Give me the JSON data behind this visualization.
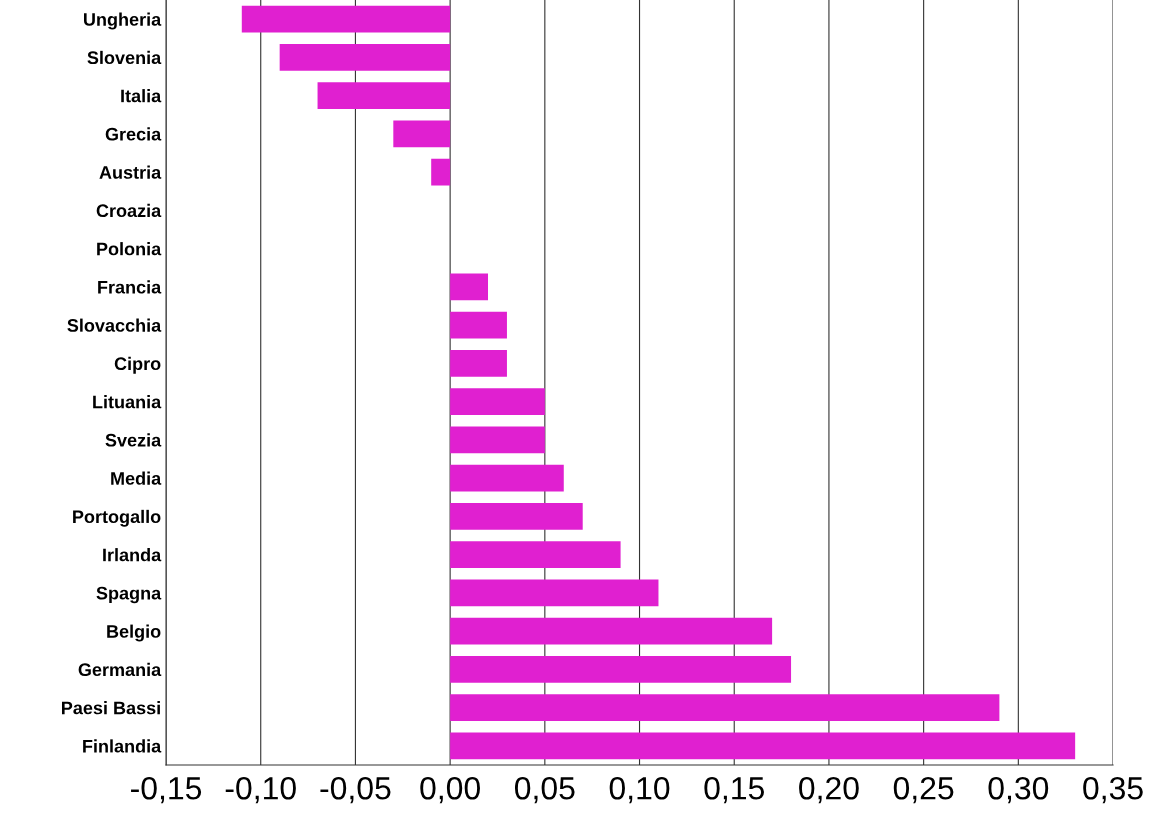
{
  "chart_data": {
    "type": "bar",
    "orientation": "horizontal",
    "categories": [
      "Ungheria",
      "Slovenia",
      "Italia",
      "Grecia",
      "Austria",
      "Croazia",
      "Polonia",
      "Francia",
      "Slovacchia",
      "Cipro",
      "Lituania",
      "Svezia",
      "Media",
      "Portogallo",
      "Irlanda",
      "Spagna",
      "Belgio",
      "Germania",
      "Paesi Bassi",
      "Finlandia"
    ],
    "values": [
      -0.11,
      -0.09,
      -0.07,
      -0.03,
      -0.01,
      0,
      0,
      0.02,
      0.03,
      0.03,
      0.05,
      0.05,
      0.06,
      0.07,
      0.09,
      0.11,
      0.17,
      0.18,
      0.29,
      0.33
    ],
    "color": "#e020d0",
    "xlim": [
      -0.15,
      0.35
    ],
    "xticks": [
      {
        "value": -0.15,
        "label": "-0,15"
      },
      {
        "value": -0.1,
        "label": "-0,10"
      },
      {
        "value": -0.05,
        "label": "-0,05"
      },
      {
        "value": 0,
        "label": "0,00"
      },
      {
        "value": 0.05,
        "label": "0,05"
      },
      {
        "value": 0.1,
        "label": "0,10"
      },
      {
        "value": 0.15,
        "label": "0,15"
      },
      {
        "value": 0.2,
        "label": "0,20"
      },
      {
        "value": 0.25,
        "label": "0,25"
      },
      {
        "value": 0.3,
        "label": "0,30"
      },
      {
        "value": 0.35,
        "label": "0,35"
      }
    ],
    "grid": "x",
    "legend": false
  }
}
